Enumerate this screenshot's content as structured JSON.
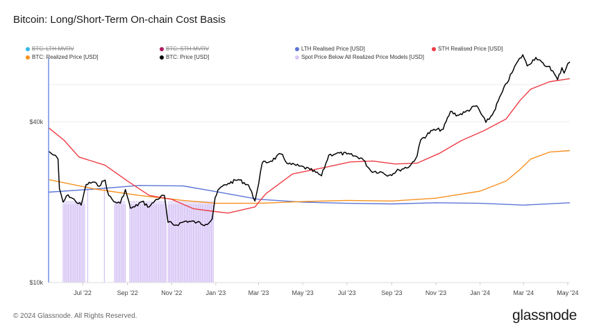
{
  "title": "Bitcoin: Long/Short-Term On-chain Cost Basis",
  "footer": "© 2024 Glassnode. All Rights Reserved.",
  "brand": "glassnode",
  "colors": {
    "lth": "#5b76d6",
    "sth": "#ee3b44",
    "realized": "#f7901e",
    "price": "#000000",
    "below": "#d8c8f5",
    "lth_mvrv": "#35b9e8",
    "sth_mvrv": "#b0175d",
    "axis_line": "#7090e0",
    "grid": "#eeeeee"
  },
  "legend": [
    {
      "label": "BTC: LTH-MVRV",
      "color": "#35b9e8",
      "hidden": true
    },
    {
      "label": "BTC: STH-MVRV",
      "color": "#b0175d",
      "hidden": true
    },
    {
      "label": "LTH Realised Price [USD]",
      "color": "#5b76d6",
      "hidden": false
    },
    {
      "label": "STH Realised Price [USD]",
      "color": "#ee3b44",
      "hidden": false
    },
    {
      "label": "BTC: Realized Price [USD]",
      "color": "#f7901e",
      "hidden": false
    },
    {
      "label": "BTC: Price [USD]",
      "color": "#000000",
      "hidden": false
    },
    {
      "label": "Spot Price Below All Realized Price Models [USD]",
      "color": "#d8c8f5",
      "hidden": false
    }
  ],
  "chart_data": {
    "type": "line",
    "title": "Bitcoin: Long/Short-Term On-chain Cost Basis",
    "y_scale": "log",
    "ylim": [
      10000,
      66000
    ],
    "xlim": [
      "2022-05-29",
      "2024-05-18"
    ],
    "y_ticks": [
      {
        "value": 10000,
        "label": "$10k"
      },
      {
        "value": 40000,
        "label": "$40k"
      }
    ],
    "x_ticks": [
      {
        "date": "2022-07-15",
        "label": "Jul '22"
      },
      {
        "date": "2022-09-15",
        "label": "Sep '22"
      },
      {
        "date": "2022-11-15",
        "label": "Nov '22"
      },
      {
        "date": "2023-01-15",
        "label": "Jan '23"
      },
      {
        "date": "2023-03-15",
        "label": "Mar '23"
      },
      {
        "date": "2023-05-15",
        "label": "May '23"
      },
      {
        "date": "2023-07-15",
        "label": "Jul '23"
      },
      {
        "date": "2023-09-15",
        "label": "Sep '23"
      },
      {
        "date": "2023-11-15",
        "label": "Nov '23"
      },
      {
        "date": "2024-01-15",
        "label": "Jan '24"
      },
      {
        "date": "2024-03-15",
        "label": "Mar '24"
      },
      {
        "date": "2024-05-15",
        "label": "May '24"
      }
    ],
    "series": [
      {
        "name": "LTH Realised Price [USD]",
        "key": "lth",
        "dates": [
          "2022-05-29",
          "2022-08-01",
          "2022-10-01",
          "2022-12-01",
          "2023-01-15",
          "2023-03-15",
          "2023-05-15",
          "2023-07-15",
          "2023-09-15",
          "2023-11-15",
          "2024-01-15",
          "2024-03-15",
          "2024-05-18"
        ],
        "values": [
          21800,
          22400,
          23100,
          23000,
          21900,
          20500,
          20000,
          19800,
          19700,
          19900,
          19800,
          19500,
          19900
        ]
      },
      {
        "name": "STH Realised Price [USD]",
        "key": "sth",
        "dates": [
          "2022-05-29",
          "2022-06-20",
          "2022-07-10",
          "2022-08-15",
          "2022-09-15",
          "2022-10-15",
          "2022-11-15",
          "2022-12-15",
          "2023-01-10",
          "2023-02-01",
          "2023-03-10",
          "2023-03-25",
          "2023-05-01",
          "2023-06-15",
          "2023-07-20",
          "2023-08-20",
          "2023-09-20",
          "2023-10-20",
          "2023-11-20",
          "2023-12-20",
          "2024-01-20",
          "2024-02-20",
          "2024-03-10",
          "2024-03-25",
          "2024-04-20",
          "2024-05-18"
        ],
        "values": [
          38000,
          34000,
          29500,
          27500,
          24000,
          21200,
          20500,
          18900,
          18500,
          18200,
          19200,
          21500,
          25500,
          27000,
          28300,
          28500,
          27800,
          28000,
          30500,
          34000,
          37000,
          41000,
          48000,
          53000,
          56500,
          58000
        ]
      },
      {
        "name": "BTC: Realized Price [USD]",
        "key": "realized",
        "dates": [
          "2022-05-29",
          "2022-08-01",
          "2022-10-01",
          "2022-12-01",
          "2023-01-15",
          "2023-03-15",
          "2023-05-15",
          "2023-07-15",
          "2023-09-15",
          "2023-11-15",
          "2024-01-15",
          "2024-02-20",
          "2024-03-10",
          "2024-03-25",
          "2024-04-20",
          "2024-05-18"
        ],
        "values": [
          24300,
          22400,
          21200,
          20300,
          19800,
          19800,
          20100,
          20300,
          20200,
          20700,
          22000,
          24000,
          26500,
          29000,
          30800,
          31200
        ]
      },
      {
        "name": "BTC: Price [USD]",
        "key": "price",
        "dates": [
          "2022-05-29",
          "2022-06-05",
          "2022-06-11",
          "2022-06-13",
          "2022-06-18",
          "2022-06-25",
          "2022-07-05",
          "2022-07-13",
          "2022-07-20",
          "2022-07-30",
          "2022-08-05",
          "2022-08-15",
          "2022-08-20",
          "2022-08-27",
          "2022-09-05",
          "2022-09-12",
          "2022-09-19",
          "2022-09-25",
          "2022-10-05",
          "2022-10-15",
          "2022-10-25",
          "2022-11-05",
          "2022-11-09",
          "2022-11-10",
          "2022-11-20",
          "2022-12-05",
          "2022-12-20",
          "2023-01-01",
          "2023-01-10",
          "2023-01-14",
          "2023-01-20",
          "2023-02-01",
          "2023-02-15",
          "2023-03-01",
          "2023-03-10",
          "2023-03-13",
          "2023-03-20",
          "2023-04-01",
          "2023-04-15",
          "2023-04-25",
          "2023-05-10",
          "2023-05-25",
          "2023-06-10",
          "2023-06-20",
          "2023-07-01",
          "2023-07-15",
          "2023-08-05",
          "2023-08-17",
          "2023-09-01",
          "2023-09-11",
          "2023-09-25",
          "2023-10-10",
          "2023-10-20",
          "2023-10-25",
          "2023-11-10",
          "2023-11-25",
          "2023-12-05",
          "2023-12-15",
          "2023-12-25",
          "2024-01-10",
          "2024-01-23",
          "2024-02-01",
          "2024-02-15",
          "2024-02-28",
          "2024-03-05",
          "2024-03-14",
          "2024-03-20",
          "2024-04-01",
          "2024-04-13",
          "2024-04-20",
          "2024-05-01",
          "2024-05-07",
          "2024-05-10",
          "2024-05-15",
          "2024-05-18"
        ],
        "values": [
          31000,
          30000,
          29000,
          22500,
          20000,
          21300,
          20200,
          19500,
          23300,
          23800,
          23000,
          24200,
          21200,
          20100,
          19800,
          22300,
          19000,
          19200,
          20100,
          19200,
          20500,
          21200,
          17500,
          16800,
          16400,
          17000,
          16800,
          16500,
          17300,
          20800,
          22500,
          23500,
          24300,
          23200,
          20200,
          22000,
          28000,
          28500,
          30300,
          27800,
          27300,
          26500,
          25100,
          30000,
          30500,
          30300,
          29200,
          26200,
          25900,
          25200,
          26400,
          27300,
          29800,
          34200,
          37100,
          37500,
          43700,
          42300,
          43400,
          46000,
          39800,
          42500,
          52000,
          61000,
          66000,
          71300,
          64800,
          69700,
          64900,
          64500,
          57500,
          63800,
          60800,
          66000,
          67000
        ]
      }
    ],
    "below_regions": [
      {
        "start": "2022-06-18",
        "end": "2022-07-18"
      },
      {
        "start": "2022-08-28",
        "end": "2022-09-12"
      },
      {
        "start": "2022-09-18",
        "end": "2022-11-08"
      },
      {
        "start": "2022-11-10",
        "end": "2023-01-12"
      }
    ],
    "below_markers": [
      {
        "date": "2022-07-22"
      },
      {
        "date": "2022-08-14"
      }
    ]
  }
}
